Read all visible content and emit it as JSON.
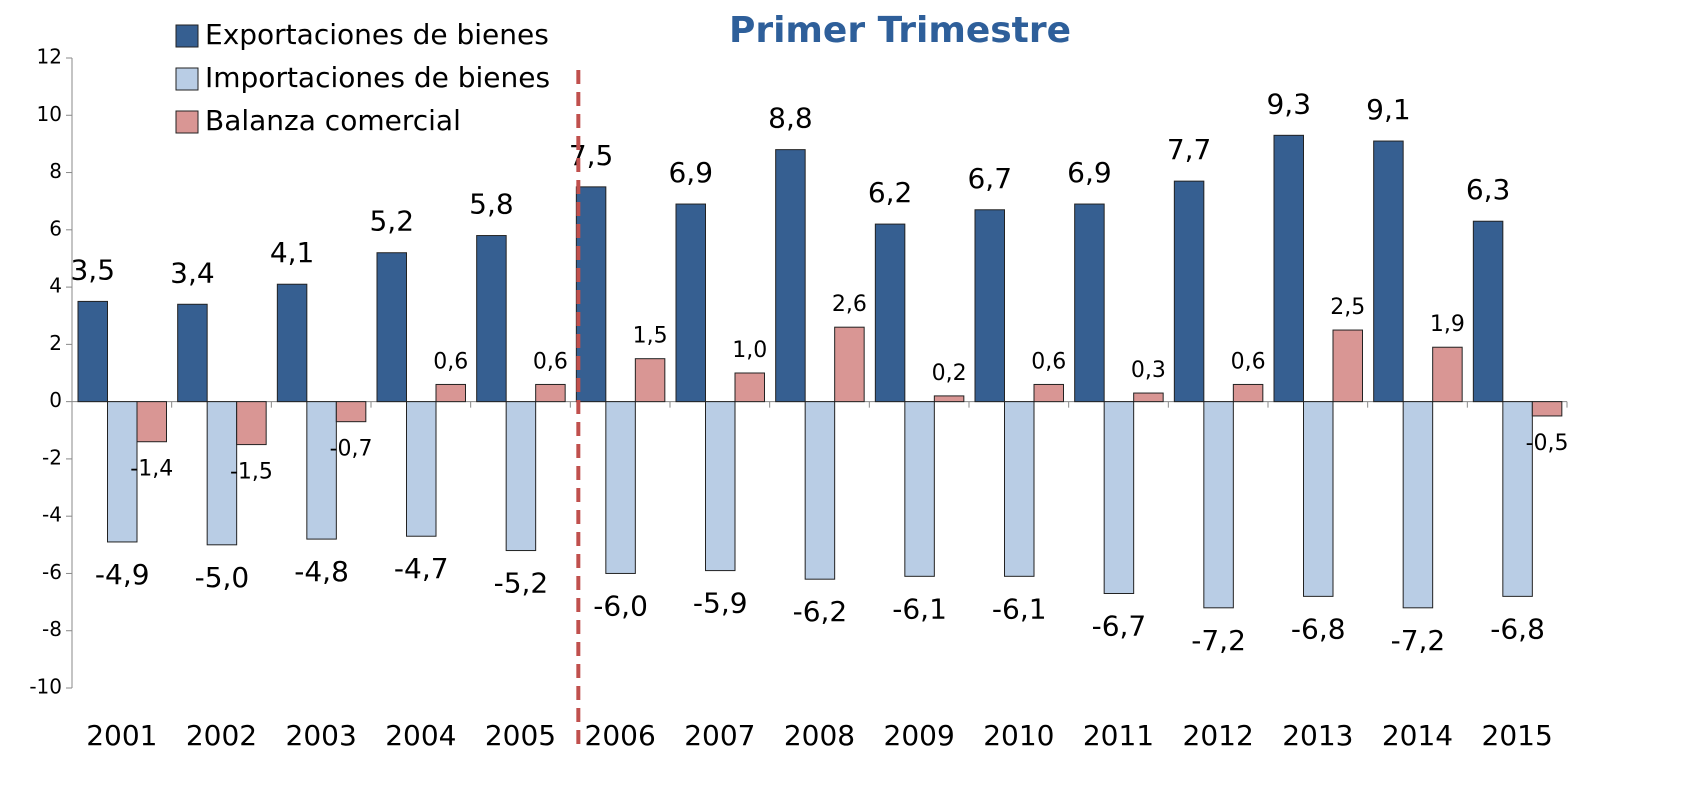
{
  "chart_data": {
    "type": "bar",
    "title": "Primer Trimestre",
    "categories": [
      "2001",
      "2002",
      "2003",
      "2004",
      "2005",
      "2006",
      "2007",
      "2008",
      "2009",
      "2010",
      "2011",
      "2012",
      "2013",
      "2014",
      "2015"
    ],
    "series": [
      {
        "name": "Exportaciones de bienes",
        "color": "#365f91",
        "values": [
          3.5,
          3.4,
          4.1,
          5.2,
          5.8,
          7.5,
          6.9,
          8.8,
          6.2,
          6.7,
          6.9,
          7.7,
          9.3,
          9.1,
          6.3
        ],
        "value_labels": [
          "3,5",
          "3,4",
          "4,1",
          "5,2",
          "5,8",
          "7,5",
          "6,9",
          "8,8",
          "6,2",
          "6,7",
          "6,9",
          "7,7",
          "9,3",
          "9,1",
          "6,3"
        ]
      },
      {
        "name": "Importaciones de bienes",
        "color": "#b9cde5",
        "values": [
          -4.9,
          -5.0,
          -4.8,
          -4.7,
          -5.2,
          -6.0,
          -5.9,
          -6.2,
          -6.1,
          -6.1,
          -6.7,
          -7.2,
          -6.8,
          -7.2,
          -6.8
        ],
        "value_labels": [
          "-4,9",
          "-5,0",
          "-4,8",
          "-4,7",
          "-5,2",
          "-6,0",
          "-5,9",
          "-6,2",
          "-6,1",
          "-6,1",
          "-6,7",
          "-7,2",
          "-6,8",
          "-7,2",
          "-6,8"
        ]
      },
      {
        "name": "Balanza comercial",
        "color": "#d99694",
        "values": [
          -1.4,
          -1.5,
          -0.7,
          0.6,
          0.6,
          1.5,
          1.0,
          2.6,
          0.2,
          0.6,
          0.3,
          0.6,
          2.5,
          1.9,
          -0.5
        ],
        "value_labels": [
          "-1,4",
          "-1,5",
          "-0,7",
          "0,6",
          "0,6",
          "1,5",
          "1,0",
          "2,6",
          "0,2",
          "0,6",
          "0,3",
          "0,6",
          "2,5",
          "1,9",
          "-0,5"
        ]
      }
    ],
    "ylim": [
      -10,
      12
    ],
    "yticks": [
      -10,
      -8,
      -6,
      -4,
      -2,
      0,
      2,
      4,
      6,
      8,
      10,
      12
    ],
    "legend": "upper left"
  }
}
